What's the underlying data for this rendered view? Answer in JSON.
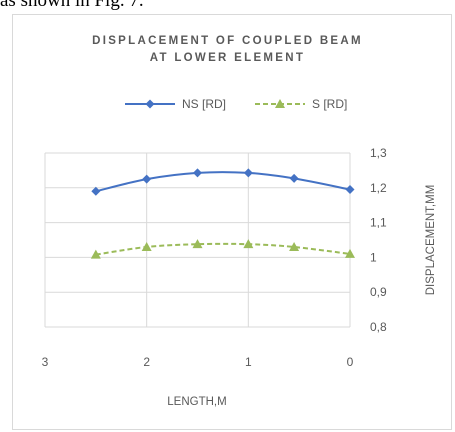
{
  "caption_fragment": "as shown in Fig. 7.",
  "chart_data": {
    "type": "line",
    "title_line1": "DISPLACEMENT OF COUPLED BEAM",
    "title_line2": "AT LOWER ELEMENT",
    "xlabel": "LENGTH,M",
    "ylabel": "DISPLACEMENT,MM",
    "xlim": [
      3,
      0
    ],
    "ylim": [
      0.8,
      1.3
    ],
    "x_ticks": [
      "3",
      "2",
      "1",
      "0"
    ],
    "y_ticks": [
      "1,3",
      "1,2",
      "1,1",
      "1",
      "0,9",
      "0,8"
    ],
    "grid": "vertical",
    "y_axis_side": "right",
    "legend_position": "top",
    "series": [
      {
        "name": "NS [RD]",
        "color": "#4472c4",
        "marker": "diamond",
        "line_style": "solid",
        "x": [
          2.5,
          2.0,
          1.5,
          1.0,
          0.55,
          0.0
        ],
        "y": [
          1.19,
          1.225,
          1.243,
          1.243,
          1.227,
          1.195
        ]
      },
      {
        "name": "S [RD]",
        "color": "#9bbb59",
        "marker": "triangle",
        "line_style": "dashed",
        "x": [
          2.5,
          2.0,
          1.5,
          1.0,
          0.55,
          0.0
        ],
        "y": [
          1.008,
          1.03,
          1.038,
          1.038,
          1.03,
          1.01
        ]
      }
    ]
  }
}
